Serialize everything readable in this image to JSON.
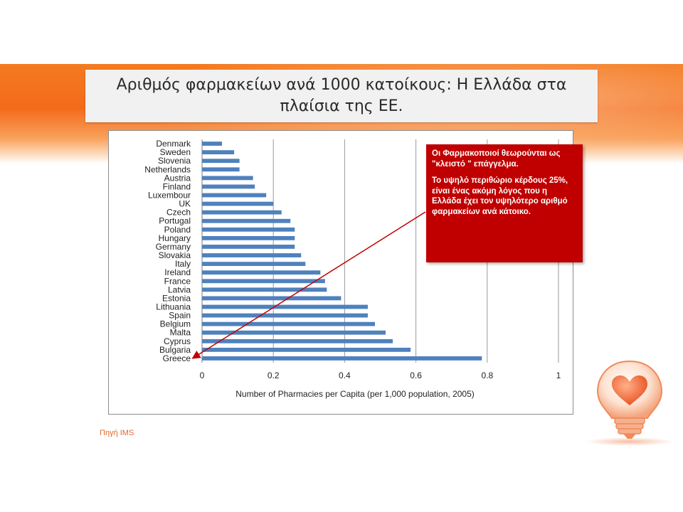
{
  "slide": {
    "title": "Αριθμός φαρμακείων ανά 1000 κατοίκους: Η Ελλάδα στα πλαίσια της ΕΕ.",
    "source": "Πηγή IMS"
  },
  "callout": {
    "paragraph1": "Οι Φαρμακοποιοί θεωρούνται ως \"κλειστό \" επάγγελμα.",
    "paragraph2": "Το υψηλό περιθώριο κέρδους 25%, είναι ένας ακόμη λόγος που η  Ελλάδα έχει τον υψηλότερο αριθμό φαρμακείων ανά κάτοικο."
  },
  "colors": {
    "bar": "#4f81bd",
    "callout": "#c00000",
    "accent": "#f47a20",
    "arrow": "#c00000"
  },
  "icons": {
    "bulb": "heart-lightbulb-icon"
  },
  "chart_data": {
    "type": "bar",
    "orientation": "horizontal",
    "title": "",
    "xlabel": "Number of Pharmacies per Capita (per 1,000 population, 2005)",
    "ylabel": "",
    "xlim": [
      0,
      1
    ],
    "xticks": [
      "0",
      "0.2",
      "0.4",
      "0.6",
      "0.8",
      "1"
    ],
    "xtick_values": [
      0,
      0.2,
      0.4,
      0.6,
      0.8,
      1
    ],
    "grid": "vertical",
    "legend": "none",
    "categories": [
      "Denmark",
      "Sweden",
      "Slovenia",
      "Netherlands",
      "Austria",
      "Finland",
      "Luxembour",
      "UK",
      "Czech",
      "Portugal",
      "Poland",
      "Hungary",
      "Germany",
      "Slovakia",
      "Italy",
      "Ireland",
      "France",
      "Latvia",
      "Estonia",
      "Lithuania",
      "Spain",
      "Belgium",
      "Malta",
      "Cyprus",
      "Bulgaria",
      "Greece"
    ],
    "values": [
      0.056,
      0.09,
      0.105,
      0.105,
      0.143,
      0.148,
      0.18,
      0.2,
      0.223,
      0.248,
      0.26,
      0.26,
      0.26,
      0.278,
      0.29,
      0.332,
      0.345,
      0.35,
      0.39,
      0.465,
      0.465,
      0.485,
      0.515,
      0.535,
      0.585,
      0.785
    ]
  }
}
